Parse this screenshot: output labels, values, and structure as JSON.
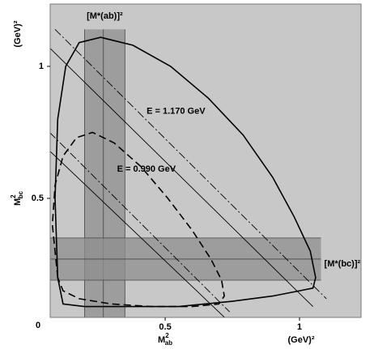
{
  "chart_data": {
    "type": "line",
    "xlim": [
      0.072,
      1.229
    ],
    "ylim": [
      0.049,
      1.236
    ],
    "xticks": [
      0.5,
      1.0
    ],
    "yticks": [
      0.5,
      1.0
    ],
    "origin_label": "0",
    "xlabel": {
      "symbol": "M",
      "sup": "2",
      "sub": "ab"
    },
    "ylabel": {
      "symbol": "M",
      "sup": "2",
      "sub": "bc"
    },
    "x_unit": "(GeV)²",
    "y_unit": "(GeV)²",
    "background": "#c8c8c8",
    "band_color": "#8f8f8f",
    "vertical_band": {
      "x": [
        0.2,
        0.35
      ],
      "y_top": 1.14,
      "lines": [
        0.2,
        0.27,
        0.35
      ],
      "label": "[M*(ab)]²"
    },
    "horizontal_band": {
      "y": [
        0.19,
        0.35
      ],
      "x_right": 1.08,
      "lines": [
        0.19,
        0.27,
        0.35
      ],
      "label": "[M*(bc)]²"
    },
    "series": [
      {
        "style": "solid",
        "width": 1.6,
        "color": "#000000",
        "label": "E = 1.170 GeV",
        "label_at": [
          0.54,
          0.83
        ],
        "x": [
          0.1,
          0.09,
          0.1,
          0.13,
          0.18,
          0.26,
          0.38,
          0.52,
          0.66,
          0.79,
          0.9,
          0.98,
          1.04,
          1.06,
          1.05,
          1.0,
          0.9,
          0.75,
          0.55,
          0.35,
          0.2,
          0.12,
          0.1
        ],
        "values": [
          0.2,
          0.5,
          0.8,
          1.0,
          1.09,
          1.11,
          1.08,
          1.0,
          0.88,
          0.74,
          0.58,
          0.43,
          0.3,
          0.2,
          0.16,
          0.15,
          0.13,
          0.11,
          0.09,
          0.09,
          0.09,
          0.1,
          0.2
        ]
      },
      {
        "style": "dashed",
        "width": 1.6,
        "color": "#000000",
        "label": "E = 0.990 GeV",
        "label_at": [
          0.43,
          0.61
        ],
        "x": [
          0.1,
          0.08,
          0.09,
          0.12,
          0.17,
          0.23,
          0.31,
          0.41,
          0.51,
          0.6,
          0.67,
          0.71,
          0.72,
          0.7,
          0.6,
          0.45,
          0.3,
          0.18,
          0.12,
          0.1
        ],
        "values": [
          0.2,
          0.4,
          0.55,
          0.66,
          0.73,
          0.75,
          0.71,
          0.62,
          0.5,
          0.38,
          0.27,
          0.19,
          0.13,
          0.1,
          0.09,
          0.09,
          0.1,
          0.12,
          0.15,
          0.2
        ]
      },
      {
        "style": "dash-dot",
        "width": 0.9,
        "color": "#000000",
        "x": [
          0.09,
          1.1
        ],
        "values": [
          1.14,
          0.12
        ]
      },
      {
        "style": "solid",
        "width": 0.9,
        "color": "#000000",
        "x": [
          0.07,
          1.05
        ],
        "values": [
          1.07,
          0.09
        ]
      },
      {
        "style": "dash-dot",
        "width": 0.9,
        "color": "#000000",
        "x": [
          0.07,
          0.74
        ],
        "values": [
          0.75,
          0.07
        ]
      },
      {
        "style": "solid",
        "width": 0.9,
        "color": "#000000",
        "x": [
          0.07,
          0.72
        ],
        "values": [
          0.68,
          0.05
        ]
      }
    ]
  }
}
